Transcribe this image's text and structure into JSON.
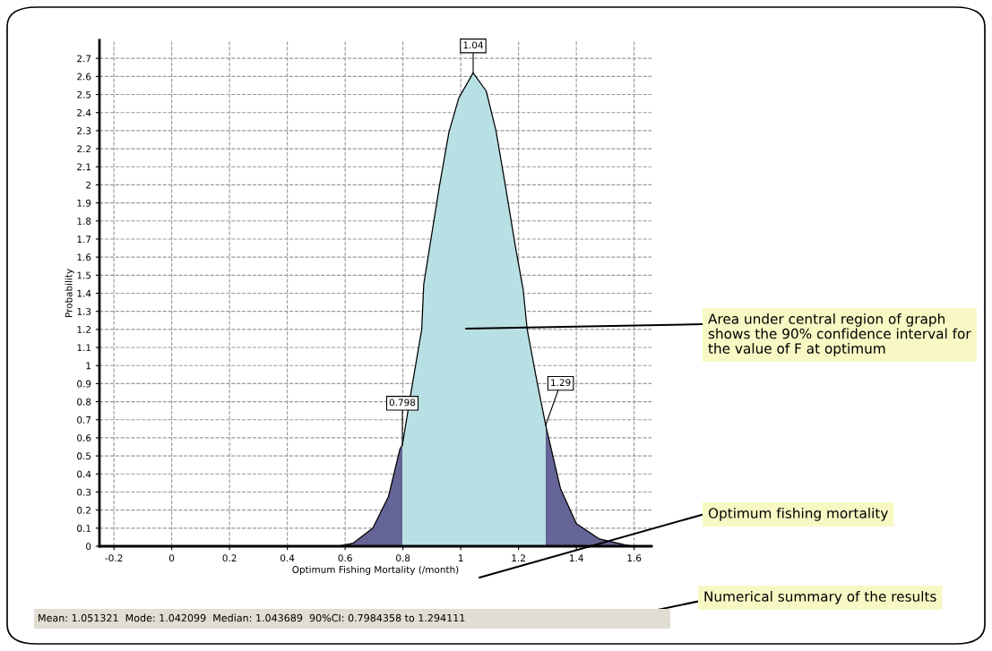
{
  "chart_data": {
    "type": "area",
    "xlabel": "Optimum Fishing Mortality (/month)",
    "ylabel": "Probability",
    "xlim": [
      -0.25,
      1.66
    ],
    "ylim": [
      0,
      2.8
    ],
    "xticks": [
      -0.2,
      0,
      0.2,
      0.4,
      0.6,
      0.8,
      1,
      1.2,
      1.4,
      1.6
    ],
    "yticks": [
      0,
      0.1,
      0.2,
      0.3,
      0.4,
      0.5,
      0.6,
      0.7,
      0.8,
      0.9,
      1,
      1.1,
      1.2,
      1.3,
      1.4,
      1.5,
      1.6,
      1.7,
      1.8,
      1.9,
      2,
      2.1,
      2.2,
      2.3,
      2.4,
      2.5,
      2.6,
      2.7
    ],
    "grid": true,
    "line_style": "dashed",
    "series": [
      {
        "color": "#646496",
        "x": [
          0.574,
          0.628,
          0.696,
          0.75,
          0.79,
          0.798
        ],
        "values": [
          0,
          0.017,
          0.1,
          0.275,
          0.54,
          0.56
        ]
      },
      {
        "color": "#b8e0e4",
        "x": [
          0.798,
          0.831,
          0.865,
          0.872,
          0.926,
          0.959,
          0.993,
          1.043,
          1.088,
          1.122,
          1.155,
          1.189,
          1.216,
          1.23,
          1.264,
          1.294
        ],
        "values": [
          0.56,
          0.88,
          1.2,
          1.45,
          1.99,
          2.29,
          2.48,
          2.62,
          2.52,
          2.3,
          1.99,
          1.66,
          1.42,
          1.2,
          0.91,
          0.67
        ]
      },
      {
        "color": "#646496",
        "x": [
          1.294,
          1.345,
          1.4,
          1.48,
          1.574,
          1.6
        ],
        "values": [
          0.67,
          0.32,
          0.125,
          0.04,
          0.006,
          0
        ]
      }
    ],
    "annotations": [
      {
        "text": "1.04",
        "x": 1.043,
        "y": 2.62
      },
      {
        "text": "0.798",
        "x": 0.798,
        "y": 0.56
      },
      {
        "text": "1.29",
        "x": 1.294,
        "y": 0.67
      },
      "Area under central region of graph shows the 90% confidence interval for the value of F at optimum",
      "Optimum fishing mortality",
      "Mean: 1.051321  Mode: 1.042099  Median: 1.043689  90%CI: 0.7984358 to 1.294111",
      "Numerical summary of the results"
    ]
  }
}
